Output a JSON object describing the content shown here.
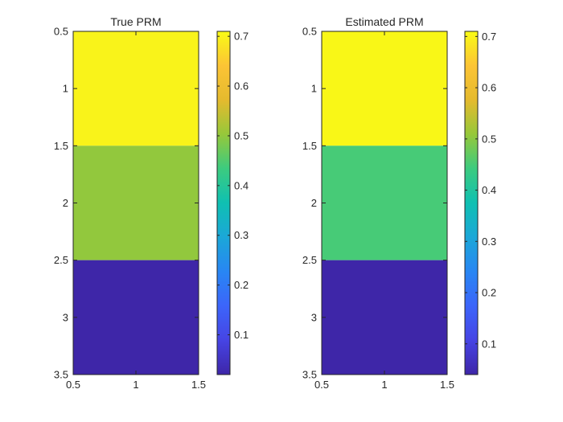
{
  "chart_data": [
    {
      "type": "heatmap",
      "title": "True PRM",
      "xlabel": "",
      "ylabel": "",
      "xlim": [
        0.5,
        1.5
      ],
      "ylim": [
        0.5,
        3.5
      ],
      "y_direction": "reverse",
      "x_ticks": [
        "0.5",
        "1",
        "1.5"
      ],
      "y_ticks": [
        "0.5",
        "1",
        "1.5",
        "2",
        "2.5",
        "3",
        "3.5"
      ],
      "x": [
        1
      ],
      "y": [
        1,
        2,
        3
      ],
      "values": [
        [
          0.7
        ],
        [
          0.5
        ],
        [
          0.02
        ]
      ],
      "colorbar": {
        "clim": [
          0.02,
          0.71
        ],
        "ticks": [
          "0.1",
          "0.2",
          "0.3",
          "0.4",
          "0.5",
          "0.6",
          "0.7"
        ],
        "colormap": "parula"
      },
      "grid": false
    },
    {
      "type": "heatmap",
      "title": "Estimated PRM",
      "xlabel": "",
      "ylabel": "",
      "xlim": [
        0.5,
        1.5
      ],
      "ylim": [
        0.5,
        3.5
      ],
      "y_direction": "reverse",
      "x_ticks": [
        "0.5",
        "1",
        "1.5"
      ],
      "y_ticks": [
        "0.5",
        "1",
        "1.5",
        "2",
        "2.5",
        "3",
        "3.5"
      ],
      "x": [
        1
      ],
      "y": [
        1,
        2,
        3
      ],
      "values": [
        [
          0.705
        ],
        [
          0.45
        ],
        [
          0.04
        ]
      ],
      "colorbar": {
        "clim": [
          0.04,
          0.71
        ],
        "ticks": [
          "0.1",
          "0.2",
          "0.3",
          "0.4",
          "0.5",
          "0.6",
          "0.7"
        ],
        "colormap": "parula"
      },
      "grid": false
    }
  ]
}
